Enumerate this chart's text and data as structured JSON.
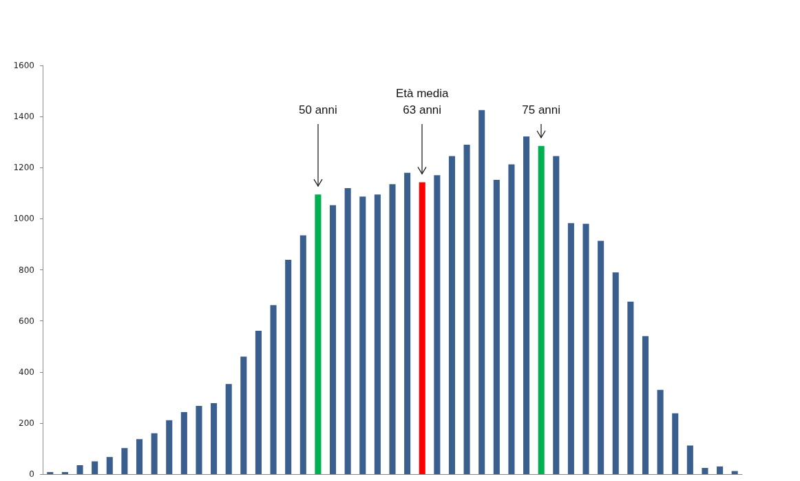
{
  "chart_data": {
    "type": "bar",
    "categories": [
      null,
      null,
      null,
      null,
      null,
      null,
      null,
      null,
      null,
      null,
      null,
      null,
      null,
      null,
      null,
      null,
      null,
      null,
      null,
      null,
      null,
      null,
      null,
      null,
      null,
      null,
      null,
      null,
      null,
      null,
      null,
      null,
      null,
      null,
      null,
      null,
      null,
      null,
      null,
      null,
      null,
      null,
      null,
      null,
      null,
      null,
      null
    ],
    "values": [
      8,
      8,
      35,
      50,
      67,
      102,
      137,
      160,
      211,
      243,
      267,
      278,
      353,
      460,
      561,
      662,
      839,
      935,
      1095,
      1053,
      1120,
      1087,
      1095,
      1135,
      1180,
      1143,
      1170,
      1245,
      1290,
      1425,
      1152,
      1213,
      1322,
      1285,
      1245,
      983,
      980,
      913,
      790,
      675,
      540,
      330,
      238,
      112,
      24,
      30,
      12
    ],
    "colors": [
      "#3a5f8f",
      "#3a5f8f",
      "#3a5f8f",
      "#3a5f8f",
      "#3a5f8f",
      "#3a5f8f",
      "#3a5f8f",
      "#3a5f8f",
      "#3a5f8f",
      "#3a5f8f",
      "#3a5f8f",
      "#3a5f8f",
      "#3a5f8f",
      "#3a5f8f",
      "#3a5f8f",
      "#3a5f8f",
      "#3a5f8f",
      "#3a5f8f",
      "#00b050",
      "#3a5f8f",
      "#3a5f8f",
      "#3a5f8f",
      "#3a5f8f",
      "#3a5f8f",
      "#3a5f8f",
      "#ff0000",
      "#3a5f8f",
      "#3a5f8f",
      "#3a5f8f",
      "#3a5f8f",
      "#3a5f8f",
      "#3a5f8f",
      "#3a5f8f",
      "#00b050",
      "#3a5f8f",
      "#3a5f8f",
      "#3a5f8f",
      "#3a5f8f",
      "#3a5f8f",
      "#3a5f8f",
      "#3a5f8f",
      "#3a5f8f",
      "#3a5f8f",
      "#3a5f8f",
      "#3a5f8f",
      "#3a5f8f",
      "#3a5f8f"
    ],
    "ylim": [
      0,
      1600
    ],
    "yticks": [
      0,
      200,
      400,
      600,
      800,
      1000,
      1200,
      1400,
      1600
    ],
    "grid": false,
    "tick_labels": "y",
    "annotations": [
      "50 anni",
      "Età media\n63 anni",
      "75 anni"
    ]
  }
}
